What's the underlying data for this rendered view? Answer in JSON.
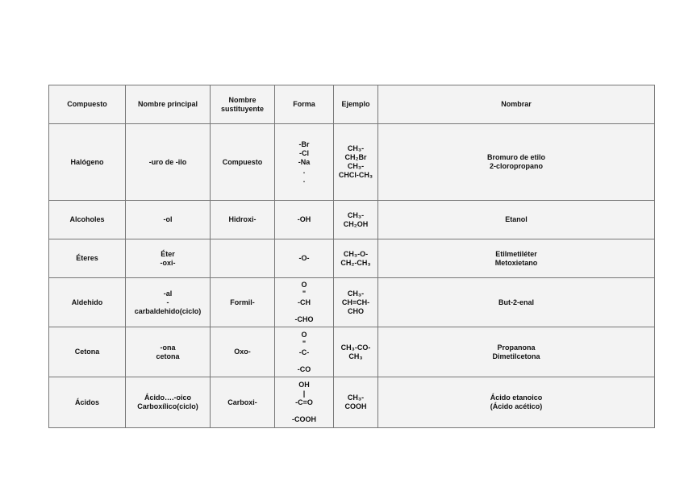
{
  "table": {
    "header": [
      [
        "Compuesto"
      ],
      [
        "Nombre principal"
      ],
      [
        "Nombre",
        "sustituyente"
      ],
      [
        "Forma"
      ],
      [
        "Ejemplo"
      ],
      [
        "Nombrar"
      ]
    ],
    "rows": [
      [
        [
          "Halógeno"
        ],
        [
          "-uro de -ilo"
        ],
        [
          "Compuesto"
        ],
        [
          "-Br",
          "-Cl",
          "-Na",
          ".",
          "."
        ],
        [
          "CH₃-",
          "CH₂Br",
          "CH₃-",
          "CHCl-CH₃"
        ],
        [
          "Bromuro de etilo",
          "2-cloropropano"
        ]
      ],
      [
        [
          "Alcoholes"
        ],
        [
          "-ol"
        ],
        [
          "Hidroxi-"
        ],
        [
          "-OH"
        ],
        [
          "CH₃-",
          "CH₂OH"
        ],
        [
          "Etanol"
        ]
      ],
      [
        [
          "Éteres"
        ],
        [
          "Éter",
          "-oxi-"
        ],
        [],
        [
          "-O-"
        ],
        [
          "CH₃-O-",
          "CH₂-CH₃"
        ],
        [
          "Etilmetiléter",
          "Metoxietano"
        ]
      ],
      [
        [
          "Aldehido"
        ],
        [
          "-al",
          "-",
          "carbaldehido(ciclo)"
        ],
        [
          "Formil-"
        ],
        [
          "O",
          "\"",
          "-CH",
          "-CHO"
        ],
        [
          "CH₃-",
          "CH=CH-",
          "CHO"
        ],
        [
          "But-2-enal"
        ]
      ],
      [
        [
          "Cetona"
        ],
        [
          "-ona",
          "cetona"
        ],
        [
          "Oxo-"
        ],
        [
          "O",
          "\"",
          "-C-",
          "-CO"
        ],
        [
          "CH₃-CO-",
          "CH₃"
        ],
        [
          "Propanona",
          "Dimetilcetona"
        ]
      ],
      [
        [
          "Ácidos"
        ],
        [
          "Ácido….-oico",
          "Carboxílico(ciclo)"
        ],
        [
          "Carboxi-"
        ],
        [
          "OH",
          "|",
          "-C=O",
          "-COOH"
        ],
        [
          "CH₃-",
          "COOH"
        ],
        [
          "Ácido etanoico",
          "(Ácido acético)"
        ]
      ]
    ]
  }
}
